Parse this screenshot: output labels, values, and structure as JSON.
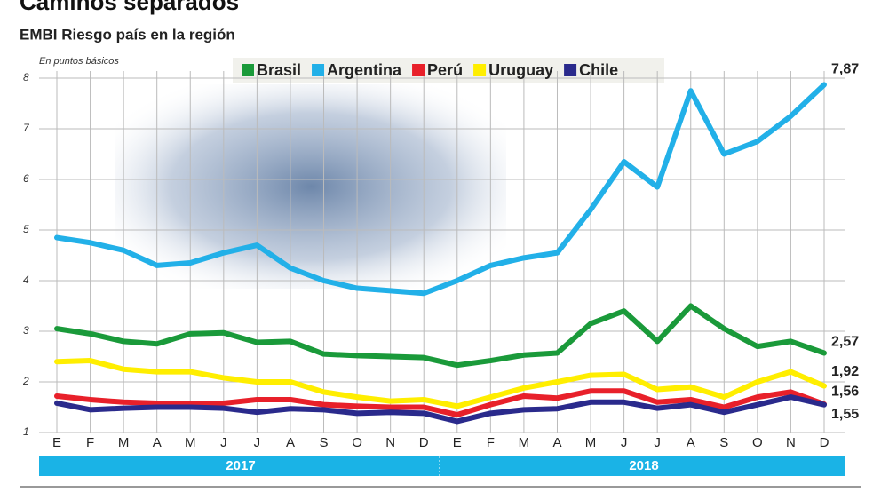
{
  "chart_data": {
    "type": "line",
    "title": "Caminos separados",
    "subtitle": "EMBI Riesgo país en la región",
    "y_label": "En puntos básicos",
    "categories": [
      "E",
      "F",
      "M",
      "A",
      "M",
      "J",
      "J",
      "A",
      "S",
      "O",
      "N",
      "D",
      "E",
      "F",
      "M",
      "A",
      "M",
      "J",
      "J",
      "A",
      "S",
      "O",
      "N",
      "D"
    ],
    "years": [
      "2017",
      "2018"
    ],
    "ylim": [
      1,
      8
    ],
    "yticks": [
      1,
      2,
      3,
      4,
      5,
      6,
      7,
      8
    ],
    "grid": true,
    "series": [
      {
        "name": "Brasil",
        "color": "#1a9a3a",
        "values": [
          3.05,
          2.95,
          2.8,
          2.75,
          2.95,
          2.97,
          2.78,
          2.8,
          2.55,
          2.52,
          2.5,
          2.48,
          2.33,
          2.42,
          2.53,
          2.57,
          3.15,
          3.4,
          2.8,
          3.5,
          3.05,
          2.7,
          2.8,
          2.57
        ],
        "value_labels": [
          null,
          null,
          null,
          null,
          null,
          null,
          null,
          null,
          null,
          null,
          null,
          null,
          null,
          null,
          null,
          null,
          null,
          null,
          null,
          null,
          null,
          null,
          null,
          "2,57"
        ]
      },
      {
        "name": "Argentina",
        "color": "#22b0e8",
        "values": [
          4.85,
          4.75,
          4.6,
          4.3,
          4.35,
          4.55,
          4.7,
          4.25,
          4.0,
          3.85,
          3.8,
          3.75,
          4.0,
          4.3,
          4.45,
          4.55,
          5.4,
          6.35,
          5.85,
          7.75,
          6.5,
          6.75,
          7.25,
          7.87
        ],
        "value_labels": [
          null,
          null,
          null,
          null,
          null,
          null,
          null,
          null,
          null,
          null,
          null,
          null,
          null,
          null,
          null,
          null,
          null,
          null,
          null,
          null,
          null,
          null,
          null,
          "7,87"
        ]
      },
      {
        "name": "Perú",
        "color": "#e8202a",
        "values": [
          1.72,
          1.65,
          1.6,
          1.58,
          1.58,
          1.58,
          1.65,
          1.65,
          1.55,
          1.52,
          1.5,
          1.5,
          1.35,
          1.55,
          1.72,
          1.68,
          1.82,
          1.82,
          1.6,
          1.65,
          1.5,
          1.7,
          1.8,
          1.56
        ],
        "value_labels": [
          null,
          null,
          null,
          null,
          null,
          null,
          null,
          null,
          null,
          null,
          null,
          null,
          null,
          null,
          null,
          null,
          null,
          null,
          null,
          null,
          null,
          null,
          null,
          "1,56"
        ]
      },
      {
        "name": "Uruguay",
        "color": "#ffee00",
        "values": [
          2.4,
          2.42,
          2.25,
          2.2,
          2.2,
          2.08,
          2.0,
          2.0,
          1.8,
          1.7,
          1.62,
          1.65,
          1.52,
          1.7,
          1.88,
          2.0,
          2.13,
          2.15,
          1.85,
          1.9,
          1.7,
          2.0,
          2.2,
          1.92
        ],
        "value_labels": [
          null,
          null,
          null,
          null,
          null,
          null,
          null,
          null,
          null,
          null,
          null,
          null,
          null,
          null,
          null,
          null,
          null,
          null,
          null,
          null,
          null,
          null,
          null,
          "1,92"
        ]
      },
      {
        "name": "Chile",
        "color": "#2a2a8c",
        "values": [
          1.58,
          1.45,
          1.48,
          1.5,
          1.5,
          1.48,
          1.4,
          1.47,
          1.45,
          1.38,
          1.4,
          1.38,
          1.22,
          1.38,
          1.45,
          1.47,
          1.6,
          1.6,
          1.48,
          1.55,
          1.4,
          1.55,
          1.7,
          1.55
        ],
        "value_labels": [
          null,
          null,
          null,
          null,
          null,
          null,
          null,
          null,
          null,
          null,
          null,
          null,
          null,
          null,
          null,
          null,
          null,
          null,
          null,
          null,
          null,
          null,
          null,
          "1,55"
        ]
      }
    ]
  }
}
